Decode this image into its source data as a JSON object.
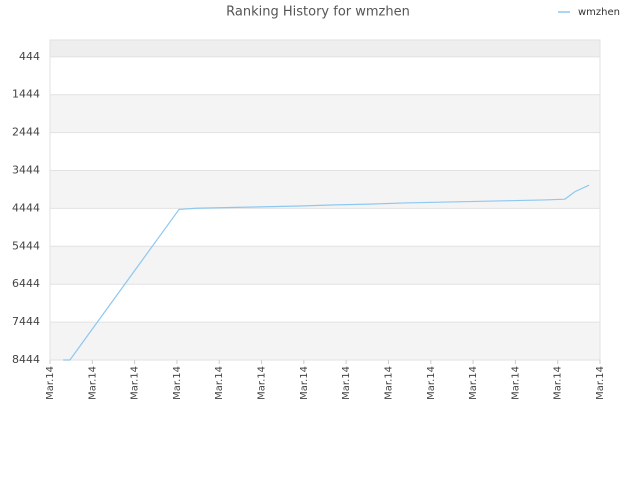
{
  "chart_data": {
    "type": "line",
    "title": "Ranking History for wmzhen",
    "x": [
      0.31,
      0.47,
      3.05,
      3.45,
      4.26,
      5.08,
      5.91,
      6.74,
      7.57,
      8.39,
      9.22,
      10.05,
      10.87,
      11.7,
      12.17,
      12.41,
      12.74
    ],
    "series": [
      {
        "name": "wmzhen",
        "color": "#8ec8f0",
        "values": [
          8444,
          8444,
          4470,
          4440,
          4420,
          4400,
          4380,
          4350,
          4330,
          4300,
          4280,
          4260,
          4240,
          4220,
          4200,
          4000,
          3830
        ]
      }
    ],
    "xlim": [
      0,
      13
    ],
    "xticks": [
      {
        "value": 0,
        "label": "Mar.14"
      },
      {
        "value": 1,
        "label": "Mar.14"
      },
      {
        "value": 2,
        "label": "Mar.14"
      },
      {
        "value": 3,
        "label": "Mar.14"
      },
      {
        "value": 4,
        "label": "Mar.14"
      },
      {
        "value": 5,
        "label": "Mar.14"
      },
      {
        "value": 6,
        "label": "Mar.14"
      },
      {
        "value": 7,
        "label": "Mar.14"
      },
      {
        "value": 8,
        "label": "Mar.14"
      },
      {
        "value": 9,
        "label": "Mar.14"
      },
      {
        "value": 10,
        "label": "Mar.14"
      },
      {
        "value": 11,
        "label": "Mar.14"
      },
      {
        "value": 12,
        "label": "Mar.14"
      },
      {
        "value": 13,
        "label": "Mar.14"
      }
    ],
    "ylim": [
      8444,
      0
    ],
    "yticks": [
      444,
      1444,
      2444,
      3444,
      4444,
      5444,
      6444,
      7444,
      8444
    ],
    "grid": true,
    "legend": "top-right"
  }
}
